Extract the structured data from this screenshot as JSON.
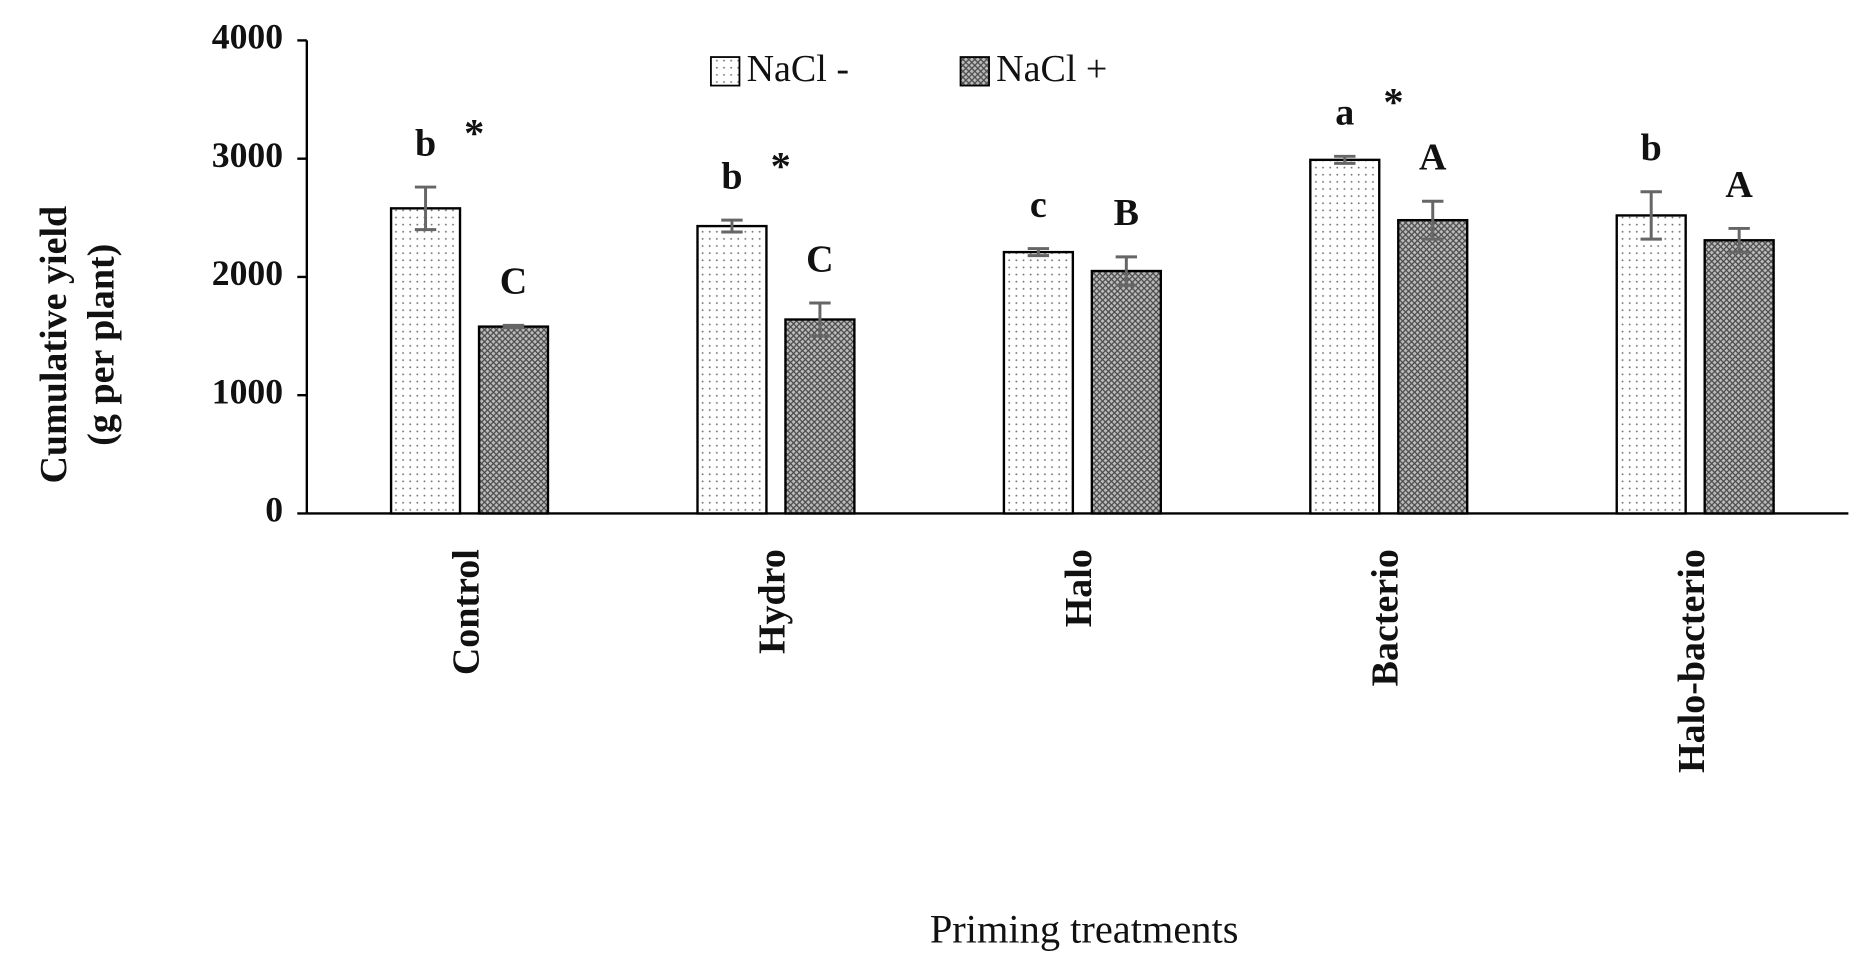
{
  "chart_data": {
    "type": "bar",
    "y_label": [
      "Cumulative yield",
      "(g per plant)"
    ],
    "x_label": "Priming treatments",
    "categories": [
      "Control",
      "Hydro",
      "Halo",
      "Bacterio",
      "Halo-bacterio"
    ],
    "series": [
      {
        "name": "NaCl -",
        "color": "#ffffff",
        "pattern": "dots",
        "values": [
          2580,
          2430,
          2210,
          2990,
          2520
        ],
        "errors": [
          180,
          50,
          30,
          30,
          200
        ],
        "letters": [
          "b",
          "b",
          "c",
          "a",
          "b"
        ]
      },
      {
        "name": "NaCl +",
        "color": "#808080",
        "pattern": "crosshatch",
        "values": [
          1580,
          1640,
          2050,
          2480,
          2310
        ],
        "errors": [
          10,
          140,
          120,
          160,
          100
        ],
        "letters": [
          "C",
          "C",
          "B",
          "A",
          "A"
        ]
      }
    ],
    "markers": [
      "*",
      "*",
      null,
      "*",
      null
    ],
    "ylim": [
      0,
      4000
    ],
    "yticks": [
      0,
      1000,
      2000,
      3000,
      4000
    ],
    "legend_position": "top",
    "grid": false
  }
}
